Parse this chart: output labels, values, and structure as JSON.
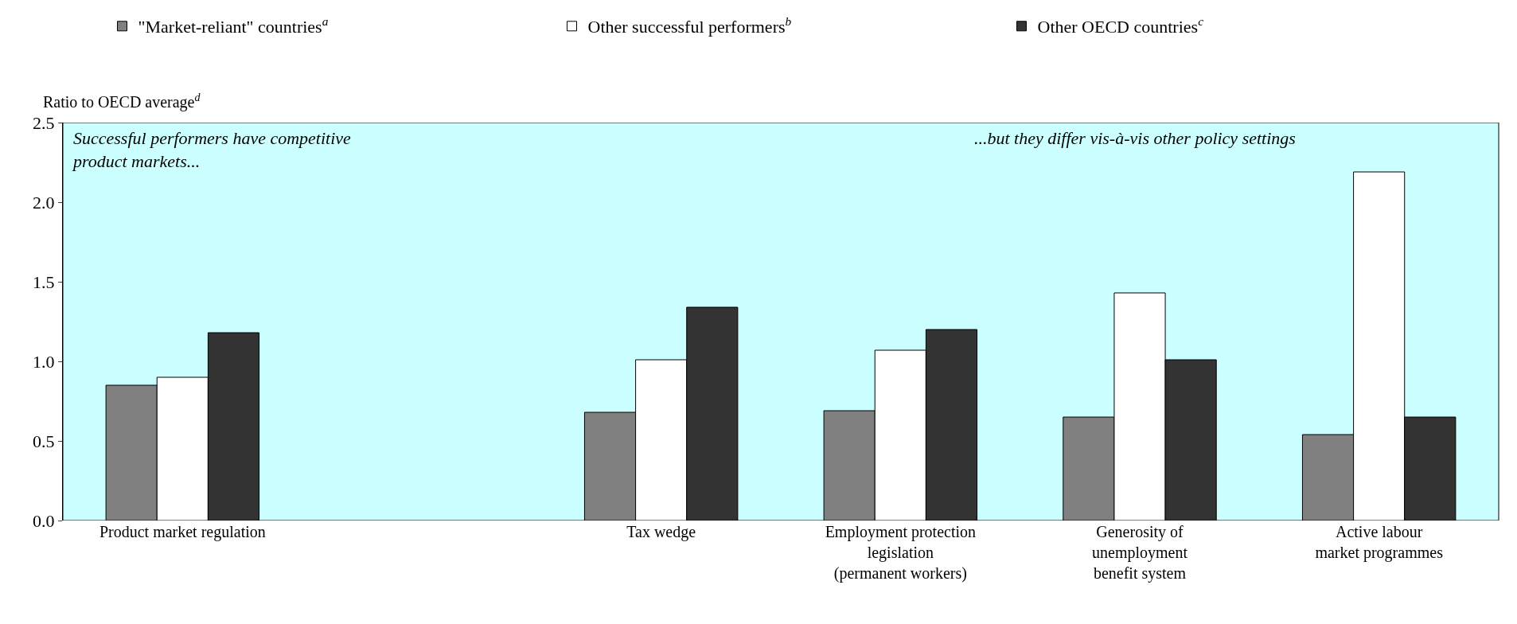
{
  "chart_data": {
    "type": "bar",
    "ylabel": "Ratio to OECD average$^{d}$",
    "categories": [
      "Product market regulation",
      null,
      "Tax wedge",
      "Employment protection\nlegislation\n(permanent workers)",
      "Generosity of\nunemployment\nbenefit system",
      "Active labour\nmarket programmes"
    ],
    "series": [
      {
        "name": "\"Market-reliant\" countries$^{a}$",
        "color": "#808080",
        "values": [
          0.85,
          null,
          0.68,
          0.69,
          0.65,
          0.54
        ]
      },
      {
        "name": "Other successful performers$^{b}$",
        "color": "#ffffff",
        "values": [
          0.9,
          null,
          1.01,
          1.07,
          1.43,
          2.19
        ]
      },
      {
        "name": "Other OECD countries$^{c}$",
        "color": "#333333",
        "values": [
          1.18,
          null,
          1.34,
          1.2,
          1.01,
          0.65
        ]
      }
    ],
    "ylim": [
      0,
      2.5
    ],
    "yticks": [
      {
        "value": 0,
        "label": "0.0"
      },
      {
        "value": 0.5,
        "label": "0.5"
      },
      {
        "value": 1,
        "label": "1.0"
      },
      {
        "value": 1.5,
        "label": "1.5"
      },
      {
        "value": 2,
        "label": "2.0"
      },
      {
        "value": 2.5,
        "label": "2.5"
      }
    ],
    "bands": [
      {
        "axis": "y",
        "from": 0,
        "to": 2.5,
        "color": "#ccffff"
      }
    ],
    "annotations": [
      "Successful performers have competitive\nproduct markets...",
      "...but they differ vis-à-vis other policy settings"
    ],
    "legend": "top",
    "grid": false
  }
}
